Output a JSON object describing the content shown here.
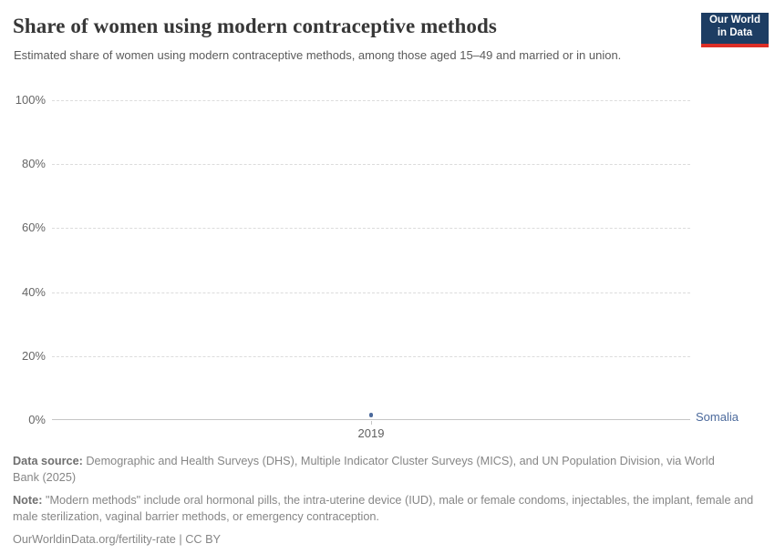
{
  "header": {
    "title": "Share of women using modern contraceptive methods",
    "subtitle": "Estimated share of women using modern contraceptive methods, among those aged 15–49 and married or in union.",
    "logo": {
      "line1": "Our World",
      "line2": "in Data",
      "bg_color": "#1d3d63",
      "accent_color": "#dc2e26"
    }
  },
  "chart_data": {
    "type": "scatter",
    "title": "Share of women using modern contraceptive methods",
    "x": [
      2019
    ],
    "series": [
      {
        "name": "Somalia",
        "values": [
          1.5
        ],
        "color": "#4c6a9c"
      }
    ],
    "xticks": [
      2019
    ],
    "yticks": [
      0,
      20,
      40,
      60,
      80,
      100
    ],
    "ytick_suffix": "%",
    "ylim": [
      0,
      100
    ],
    "grid": true,
    "gridline_color": "#dcdcdc",
    "axis_color": "#c6c6c6",
    "legend_position": "right-of-point"
  },
  "footer": {
    "datasource_prefix": "Data source:",
    "datasource_text": " Demographic and Health Surveys (DHS), Multiple Indicator Cluster Surveys (MICS), and UN Population Division, via World Bank (2025)",
    "note_prefix": "Note:",
    "note_text": " \"Modern methods\" include oral hormonal pills, the intra-uterine device (IUD), male or female condoms, injectables, the implant, female and male sterilization, vaginal barrier methods, or emergency contraception.",
    "link": "OurWorldinData.org/fertility-rate",
    "separator": " | ",
    "license": "CC BY"
  }
}
